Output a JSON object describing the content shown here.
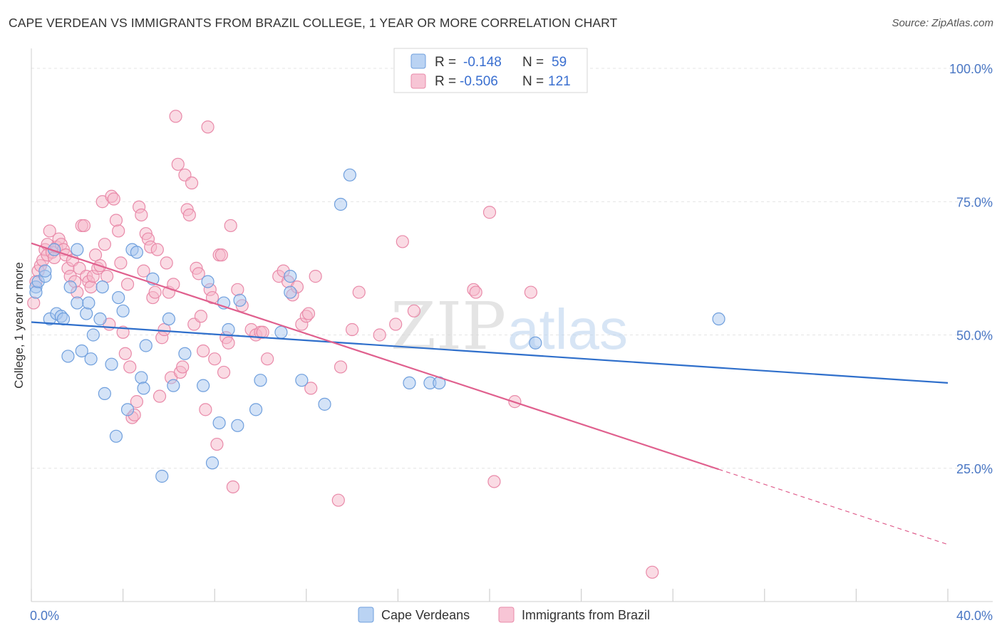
{
  "header": {
    "title": "CAPE VERDEAN VS IMMIGRANTS FROM BRAZIL COLLEGE, 1 YEAR OR MORE CORRELATION CHART",
    "source": "Source: ZipAtlas.com"
  },
  "watermark": {
    "zip": "ZIP",
    "atlas": "atlas"
  },
  "colors": {
    "blue_fill": "#a9c8f0",
    "blue_stroke": "#6f9fdd",
    "blue_line": "#2f6fcb",
    "pink_fill": "#f5b7ca",
    "pink_stroke": "#e98aa9",
    "pink_line": "#e0608e",
    "grid": "#e4e4e4",
    "tick_text": "#4a77c4"
  },
  "legend": {
    "rows": [
      {
        "r_label": "R =",
        "r_value": "-0.148",
        "n_label": "N =",
        "n_value": "59"
      },
      {
        "r_label": "R =",
        "r_value": "-0.506",
        "n_label": "N =",
        "n_value": "121"
      }
    ]
  },
  "bottom_legend": [
    "Cape Verdeans",
    "Immigrants from Brazil"
  ],
  "chart_data": {
    "type": "scatter",
    "title": "CAPE VERDEAN VS IMMIGRANTS FROM BRAZIL COLLEGE, 1 YEAR OR MORE CORRELATION CHART",
    "ylabel": "College, 1 year or more",
    "xlabel": "",
    "xlim": [
      0,
      0.4
    ],
    "ylim": [
      0,
      1.0
    ],
    "x_tick_labels": [
      {
        "value": 0.0,
        "label": "0.0%"
      },
      {
        "value": 0.4,
        "label": "40.0%"
      }
    ],
    "y_tick_labels": [
      {
        "value": 0.25,
        "label": "25.0%"
      },
      {
        "value": 0.5,
        "label": "50.0%"
      },
      {
        "value": 0.75,
        "label": "75.0%"
      },
      {
        "value": 1.0,
        "label": "100.0%"
      }
    ],
    "series": [
      {
        "name": "Cape Verdeans",
        "color": "blue",
        "trend": {
          "x0": 0.0,
          "y0": 0.524,
          "x1": 0.4,
          "y1": 0.41
        },
        "points": [
          [
            0.002,
            0.59
          ],
          [
            0.002,
            0.58
          ],
          [
            0.003,
            0.6
          ],
          [
            0.006,
            0.61
          ],
          [
            0.006,
            0.62
          ],
          [
            0.008,
            0.53
          ],
          [
            0.01,
            0.66
          ],
          [
            0.011,
            0.54
          ],
          [
            0.013,
            0.535
          ],
          [
            0.014,
            0.53
          ],
          [
            0.016,
            0.46
          ],
          [
            0.017,
            0.59
          ],
          [
            0.02,
            0.66
          ],
          [
            0.02,
            0.56
          ],
          [
            0.022,
            0.47
          ],
          [
            0.024,
            0.54
          ],
          [
            0.025,
            0.56
          ],
          [
            0.026,
            0.455
          ],
          [
            0.027,
            0.5
          ],
          [
            0.03,
            0.53
          ],
          [
            0.031,
            0.59
          ],
          [
            0.032,
            0.39
          ],
          [
            0.035,
            0.445
          ],
          [
            0.037,
            0.31
          ],
          [
            0.038,
            0.57
          ],
          [
            0.04,
            0.545
          ],
          [
            0.042,
            0.36
          ],
          [
            0.044,
            0.66
          ],
          [
            0.046,
            0.655
          ],
          [
            0.048,
            0.42
          ],
          [
            0.049,
            0.4
          ],
          [
            0.05,
            0.48
          ],
          [
            0.053,
            0.605
          ],
          [
            0.057,
            0.235
          ],
          [
            0.06,
            0.53
          ],
          [
            0.062,
            0.405
          ],
          [
            0.067,
            0.465
          ],
          [
            0.075,
            0.405
          ],
          [
            0.077,
            0.6
          ],
          [
            0.079,
            0.26
          ],
          [
            0.082,
            0.335
          ],
          [
            0.084,
            0.56
          ],
          [
            0.086,
            0.51
          ],
          [
            0.09,
            0.33
          ],
          [
            0.091,
            0.565
          ],
          [
            0.098,
            0.36
          ],
          [
            0.1,
            0.415
          ],
          [
            0.109,
            0.505
          ],
          [
            0.113,
            0.61
          ],
          [
            0.113,
            0.58
          ],
          [
            0.118,
            0.415
          ],
          [
            0.128,
            0.37
          ],
          [
            0.135,
            0.745
          ],
          [
            0.139,
            0.8
          ],
          [
            0.165,
            0.41
          ],
          [
            0.174,
            0.41
          ],
          [
            0.178,
            0.41
          ],
          [
            0.22,
            0.485
          ],
          [
            0.3,
            0.53
          ]
        ]
      },
      {
        "name": "Immigrants from Brazil",
        "color": "pink",
        "trend": {
          "x0": 0.0,
          "y0": 0.672,
          "x1": 0.3,
          "y1": 0.248
        },
        "trend_dashed": {
          "x0": 0.3,
          "y0": 0.248,
          "x1": 0.4,
          "y1": 0.107
        },
        "points": [
          [
            0.001,
            0.56
          ],
          [
            0.002,
            0.6
          ],
          [
            0.003,
            0.62
          ],
          [
            0.004,
            0.63
          ],
          [
            0.005,
            0.64
          ],
          [
            0.006,
            0.66
          ],
          [
            0.007,
            0.67
          ],
          [
            0.007,
            0.65
          ],
          [
            0.008,
            0.695
          ],
          [
            0.009,
            0.655
          ],
          [
            0.01,
            0.645
          ],
          [
            0.011,
            0.665
          ],
          [
            0.012,
            0.68
          ],
          [
            0.013,
            0.67
          ],
          [
            0.014,
            0.66
          ],
          [
            0.015,
            0.65
          ],
          [
            0.016,
            0.625
          ],
          [
            0.017,
            0.61
          ],
          [
            0.018,
            0.64
          ],
          [
            0.019,
            0.6
          ],
          [
            0.02,
            0.58
          ],
          [
            0.021,
            0.625
          ],
          [
            0.022,
            0.705
          ],
          [
            0.023,
            0.705
          ],
          [
            0.024,
            0.61
          ],
          [
            0.025,
            0.6
          ],
          [
            0.026,
            0.59
          ],
          [
            0.027,
            0.61
          ],
          [
            0.028,
            0.65
          ],
          [
            0.029,
            0.625
          ],
          [
            0.03,
            0.63
          ],
          [
            0.031,
            0.75
          ],
          [
            0.032,
            0.67
          ],
          [
            0.033,
            0.61
          ],
          [
            0.034,
            0.52
          ],
          [
            0.035,
            0.76
          ],
          [
            0.036,
            0.755
          ],
          [
            0.037,
            0.715
          ],
          [
            0.038,
            0.695
          ],
          [
            0.039,
            0.635
          ],
          [
            0.04,
            0.505
          ],
          [
            0.041,
            0.465
          ],
          [
            0.042,
            0.595
          ],
          [
            0.043,
            0.44
          ],
          [
            0.044,
            0.345
          ],
          [
            0.045,
            0.35
          ],
          [
            0.046,
            0.375
          ],
          [
            0.047,
            0.74
          ],
          [
            0.048,
            0.725
          ],
          [
            0.049,
            0.62
          ],
          [
            0.05,
            0.69
          ],
          [
            0.051,
            0.68
          ],
          [
            0.052,
            0.665
          ],
          [
            0.053,
            0.57
          ],
          [
            0.054,
            0.58
          ],
          [
            0.055,
            0.66
          ],
          [
            0.056,
            0.385
          ],
          [
            0.057,
            0.495
          ],
          [
            0.058,
            0.51
          ],
          [
            0.059,
            0.635
          ],
          [
            0.06,
            0.58
          ],
          [
            0.061,
            0.42
          ],
          [
            0.062,
            0.595
          ],
          [
            0.063,
            0.91
          ],
          [
            0.064,
            0.82
          ],
          [
            0.065,
            0.43
          ],
          [
            0.066,
            0.44
          ],
          [
            0.067,
            0.8
          ],
          [
            0.068,
            0.735
          ],
          [
            0.069,
            0.725
          ],
          [
            0.07,
            0.785
          ],
          [
            0.071,
            0.52
          ],
          [
            0.072,
            0.625
          ],
          [
            0.073,
            0.615
          ],
          [
            0.074,
            0.535
          ],
          [
            0.075,
            0.47
          ],
          [
            0.076,
            0.36
          ],
          [
            0.077,
            0.89
          ],
          [
            0.078,
            0.585
          ],
          [
            0.079,
            0.57
          ],
          [
            0.08,
            0.455
          ],
          [
            0.081,
            0.295
          ],
          [
            0.082,
            0.65
          ],
          [
            0.083,
            0.65
          ],
          [
            0.084,
            0.43
          ],
          [
            0.085,
            0.495
          ],
          [
            0.086,
            0.485
          ],
          [
            0.087,
            0.705
          ],
          [
            0.088,
            0.215
          ],
          [
            0.09,
            0.585
          ],
          [
            0.092,
            0.555
          ],
          [
            0.096,
            0.51
          ],
          [
            0.098,
            0.5
          ],
          [
            0.1,
            0.505
          ],
          [
            0.101,
            0.505
          ],
          [
            0.103,
            0.455
          ],
          [
            0.108,
            0.61
          ],
          [
            0.11,
            0.62
          ],
          [
            0.112,
            0.6
          ],
          [
            0.114,
            0.575
          ],
          [
            0.116,
            0.59
          ],
          [
            0.118,
            0.52
          ],
          [
            0.12,
            0.535
          ],
          [
            0.121,
            0.54
          ],
          [
            0.122,
            0.4
          ],
          [
            0.124,
            0.61
          ],
          [
            0.134,
            0.19
          ],
          [
            0.135,
            0.44
          ],
          [
            0.14,
            0.51
          ],
          [
            0.143,
            0.58
          ],
          [
            0.152,
            0.5
          ],
          [
            0.159,
            0.52
          ],
          [
            0.162,
            0.675
          ],
          [
            0.167,
            0.545
          ],
          [
            0.193,
            0.585
          ],
          [
            0.194,
            0.58
          ],
          [
            0.2,
            0.73
          ],
          [
            0.202,
            0.225
          ],
          [
            0.211,
            0.375
          ],
          [
            0.218,
            0.58
          ],
          [
            0.271,
            0.055
          ]
        ]
      }
    ]
  }
}
